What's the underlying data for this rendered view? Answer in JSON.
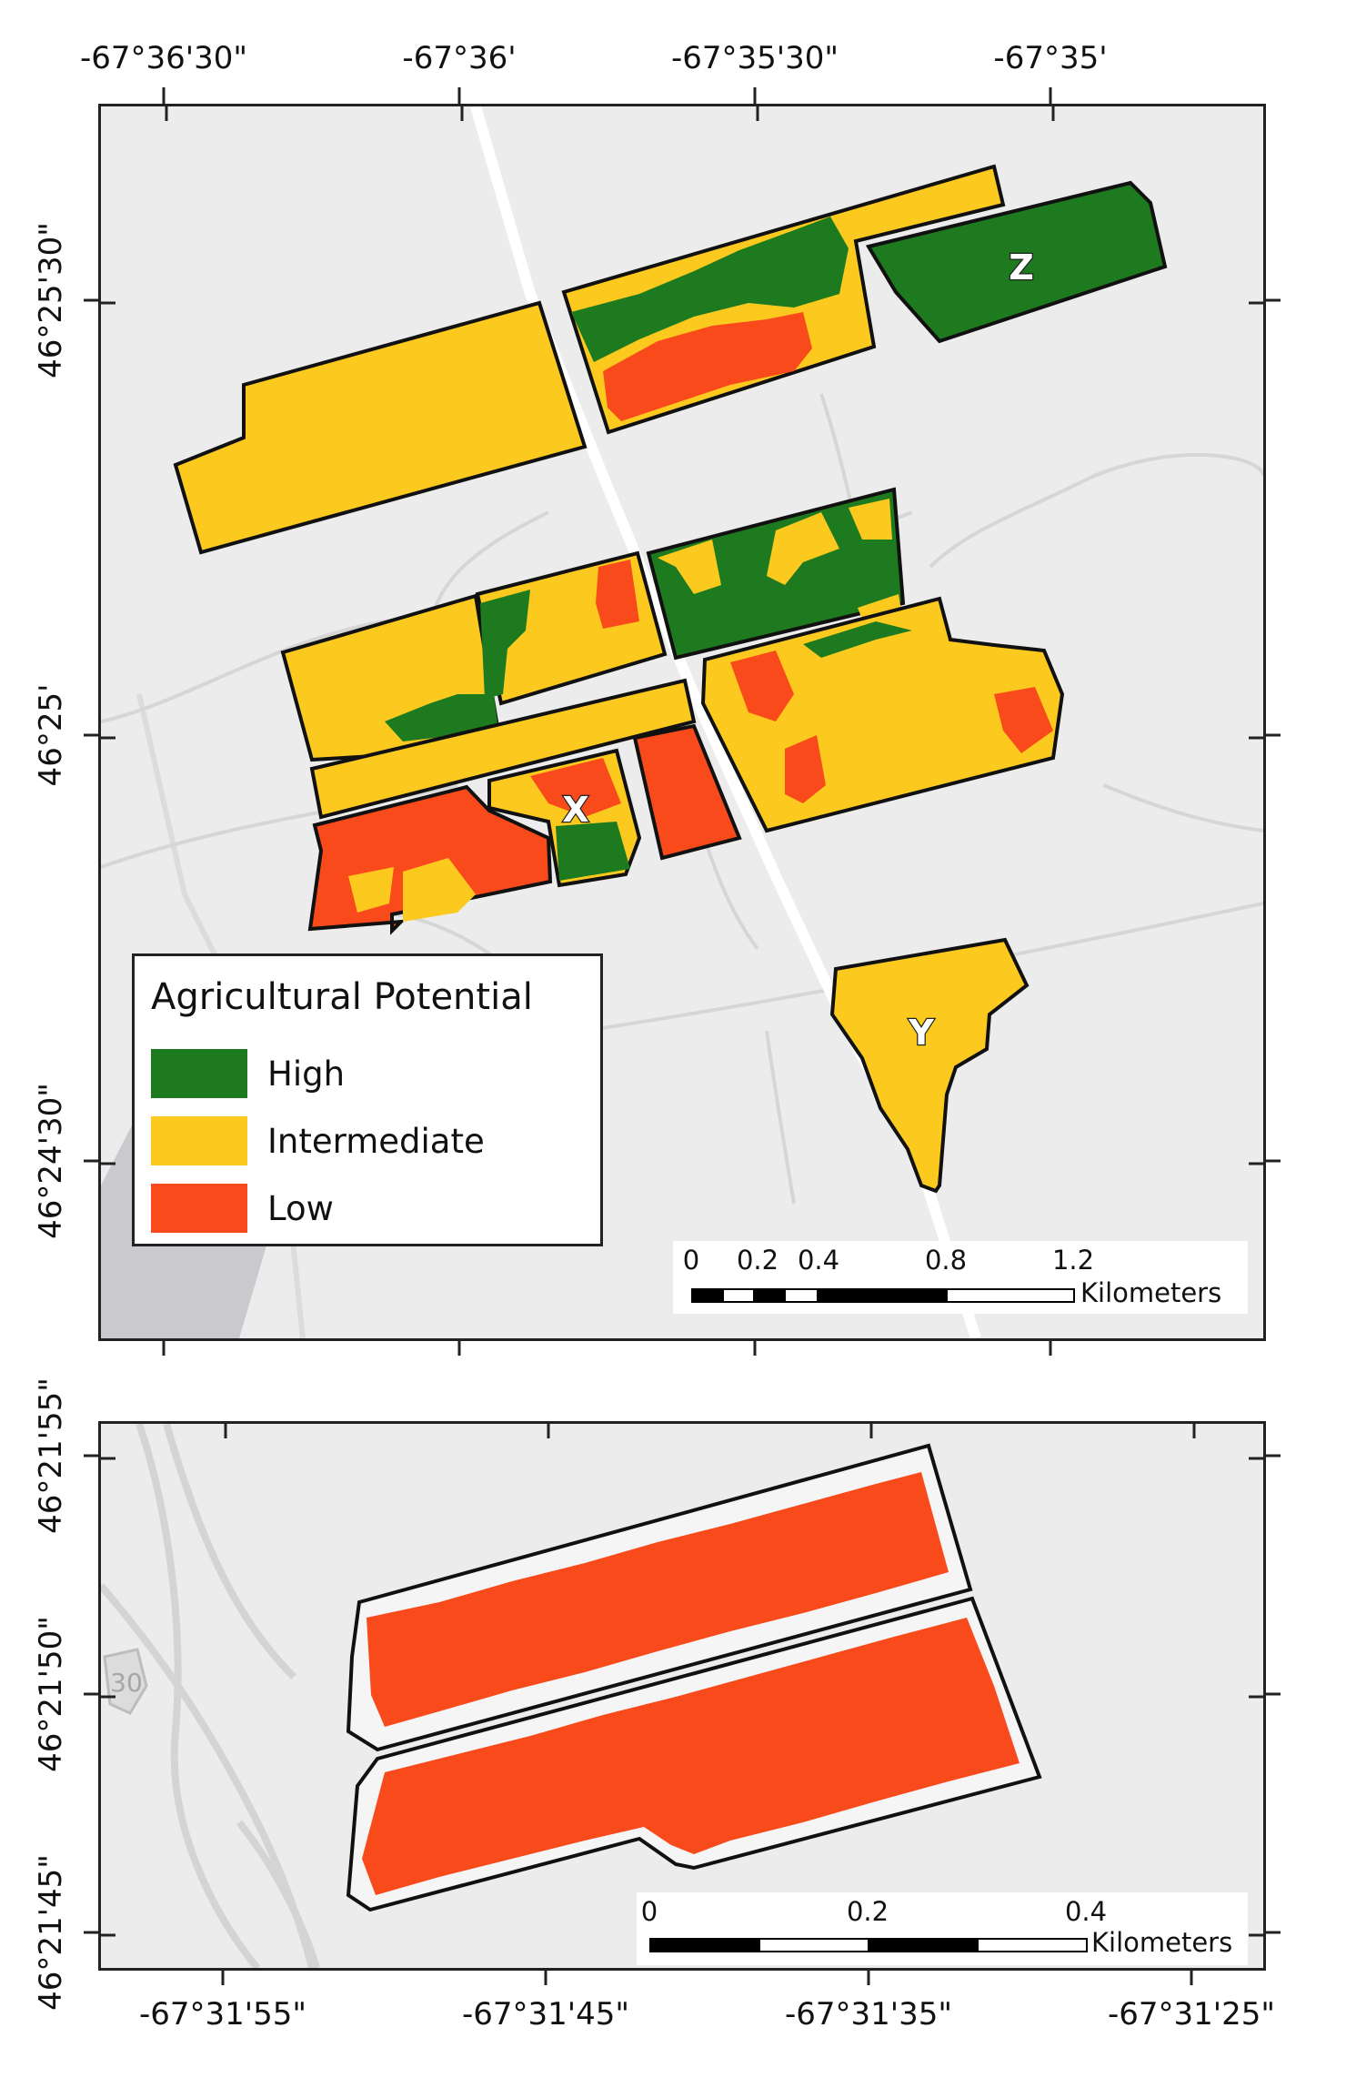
{
  "top_map": {
    "x_ticks": [
      "-67°36'30\"",
      "-67°36'",
      "-67°35'30\"",
      "-67°35'"
    ],
    "y_ticks": [
      "46°25'30\"",
      "46°25'",
      "46°24'30\""
    ],
    "field_labels": {
      "z": "Z",
      "x": "X",
      "y": "Y"
    },
    "legend": {
      "title": "Agricultural Potential",
      "items": [
        {
          "label": "High",
          "color": "#1e7a1e"
        },
        {
          "label": "Intermediate",
          "color": "#fcca1e"
        },
        {
          "label": "Low",
          "color": "#f94a1c"
        }
      ]
    },
    "scale": {
      "labels": [
        "0",
        "0.2",
        "0.4",
        "0.8",
        "1.2"
      ],
      "unit": "Kilometers"
    }
  },
  "bottom_map": {
    "x_ticks": [
      "-67°31'55\"",
      "-67°31'45\"",
      "-67°31'35\"",
      "-67°31'25\""
    ],
    "y_ticks": [
      "46°21'55\"",
      "46°21'50\"",
      "46°21'45\""
    ],
    "road_shield": "30",
    "scale": {
      "labels": [
        "0",
        "0.2",
        "0.4"
      ],
      "unit": "Kilometers"
    }
  },
  "colors": {
    "high": "#1e7a1e",
    "intermediate": "#fcca1e",
    "low": "#f94a1c",
    "background": "#ececec"
  }
}
